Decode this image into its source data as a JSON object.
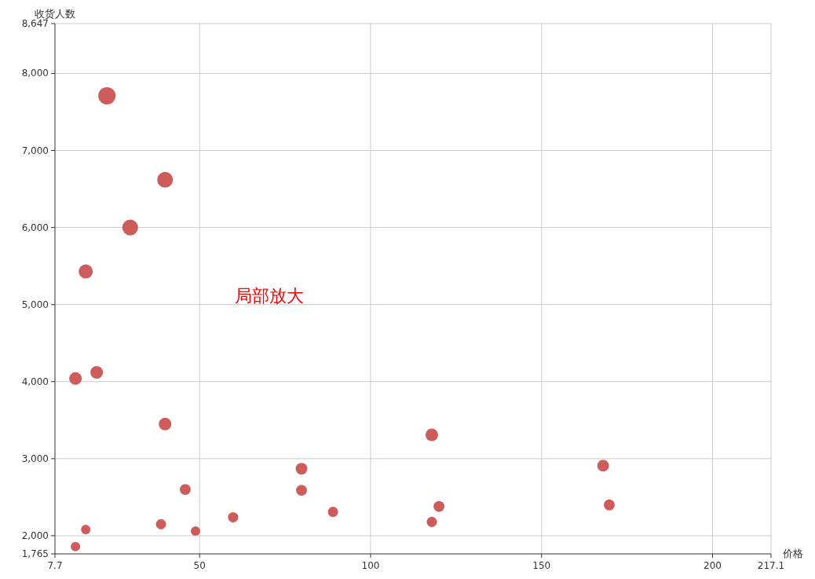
{
  "chart_data": {
    "type": "bubble",
    "xlabel": "价格",
    "ylabel": "收货人数",
    "annotations": [
      "局部放大"
    ],
    "color": "#cd5c5a",
    "grid": true,
    "xlim": [
      7.7,
      217.1
    ],
    "xticks": [
      7.7,
      50,
      100,
      150,
      200,
      217.1
    ],
    "ylim": [
      1765,
      8647
    ],
    "yticks": [
      {
        "value": 1765,
        "label": "1,765"
      },
      {
        "value": 2000,
        "label": "2,000"
      },
      {
        "value": 3000,
        "label": "3,000"
      },
      {
        "value": 4000,
        "label": "4,000"
      },
      {
        "value": 5000,
        "label": "5,000"
      },
      {
        "value": 6000,
        "label": "6,000"
      },
      {
        "value": 7000,
        "label": "7,000"
      },
      {
        "value": 8000,
        "label": "8,000"
      },
      {
        "value": 8647,
        "label": "8,647"
      }
    ],
    "x": [
      22.9,
      39.9,
      29.7,
      16.7,
      13.7,
      19.9,
      39.9,
      117.9,
      168.0,
      79.8,
      45.8,
      79.8,
      120.0,
      169.8,
      89.0,
      59.8,
      117.9,
      38.7,
      16.7,
      48.8,
      13.7
    ],
    "values": [
      7710,
      6620,
      6000,
      5430,
      4040,
      4120,
      3450,
      3310,
      2910,
      2870,
      2600,
      2590,
      2380,
      2400,
      2310,
      2240,
      2180,
      2150,
      2080,
      2060,
      1860
    ],
    "sizes": [
      1,
      0.83,
      0.83,
      0.67,
      0.53,
      0.53,
      0.53,
      0.53,
      0.46,
      0.46,
      0.4,
      0.4,
      0.4,
      0.4,
      0.35,
      0.35,
      0.35,
      0.35,
      0.3,
      0.3,
      0.3
    ]
  }
}
